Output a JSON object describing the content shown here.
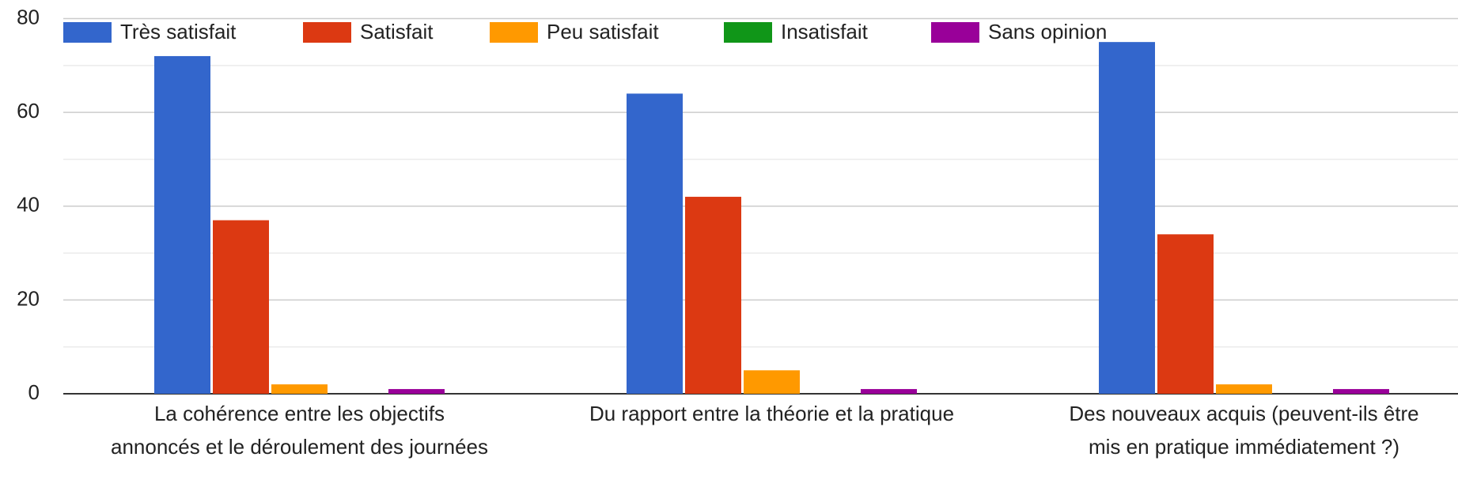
{
  "chart_data": {
    "type": "bar",
    "categories": [
      "La cohérence entre les objectifs annoncés et le déroulement des journées",
      "Du rapport entre la théorie et la pratique",
      "Des nouveaux acquis (peuvent-ils être mis en pratique immédiatement ?)"
    ],
    "series": [
      {
        "name": "Très satisfait",
        "color": "#3366cc",
        "values": [
          72,
          64,
          75
        ]
      },
      {
        "name": "Satisfait",
        "color": "#dc3912",
        "values": [
          37,
          42,
          34
        ]
      },
      {
        "name": "Peu satisfait",
        "color": "#ff9900",
        "values": [
          2,
          5,
          2
        ]
      },
      {
        "name": "Insatisfait",
        "color": "#109618",
        "values": [
          0,
          0,
          0
        ]
      },
      {
        "name": "Sans opinion",
        "color": "#990099",
        "values": [
          1,
          1,
          1
        ]
      }
    ],
    "ylim": [
      0,
      80
    ],
    "yticks": [
      0,
      20,
      40,
      60,
      80
    ],
    "minor_yticks": [
      10,
      30,
      50,
      70
    ],
    "grid": true,
    "legend": "top"
  }
}
